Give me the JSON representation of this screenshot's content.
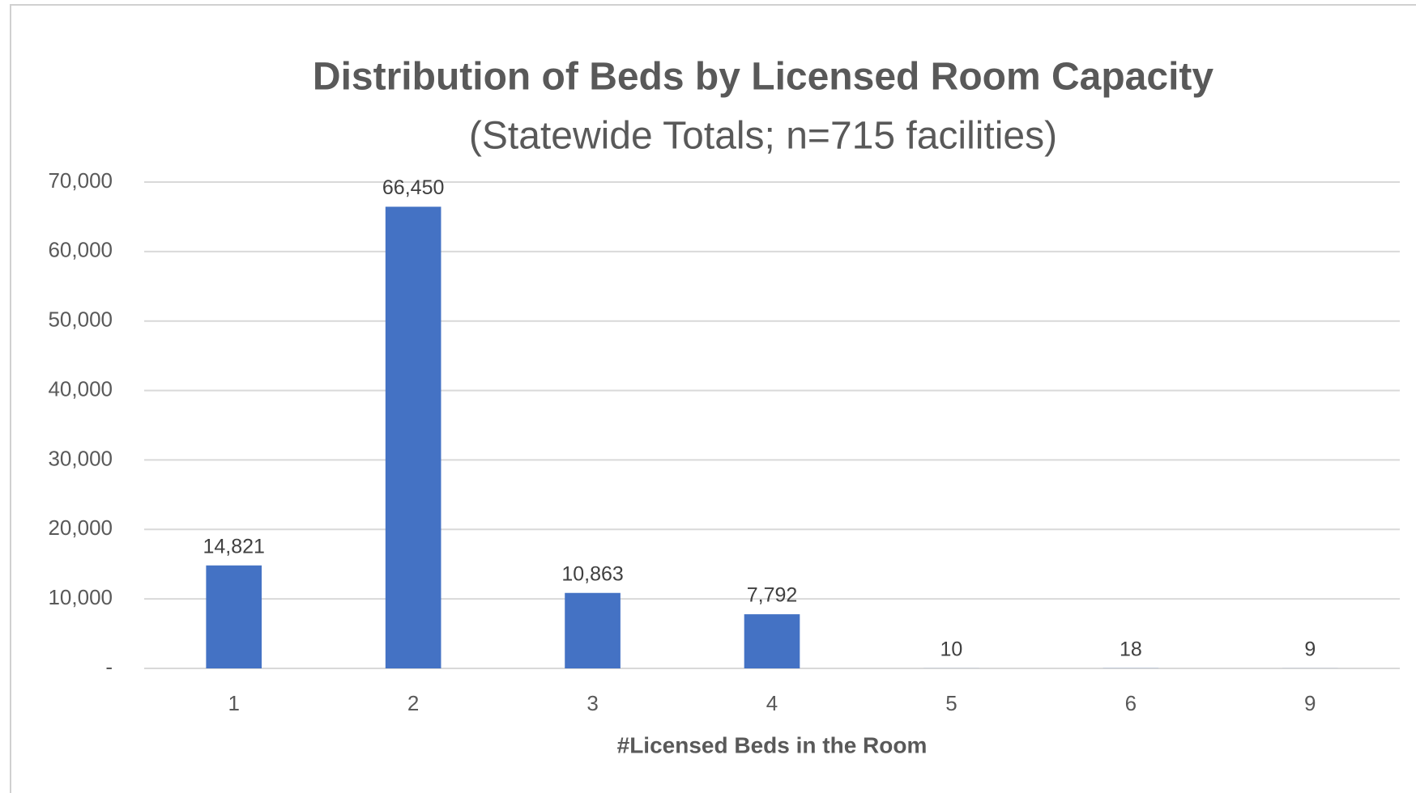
{
  "chart_data": {
    "type": "bar",
    "title": "Distribution of Beds by Licensed Room Capacity",
    "subtitle": "(Statewide Totals; n=715 facilities)",
    "x_label": "#Licensed Beds in the Room",
    "categories": [
      "1",
      "2",
      "3",
      "4",
      "5",
      "6",
      "9"
    ],
    "values": [
      14821,
      66450,
      10863,
      7792,
      10,
      18,
      9
    ],
    "value_labels": [
      "14,821",
      "66,450",
      "10,863",
      "7,792",
      "10",
      "18",
      "9"
    ],
    "color": "#4472c4",
    "ylim": [
      0,
      70000
    ],
    "yticks": [
      {
        "value": 0,
        "label": "-"
      },
      {
        "value": 10000,
        "label": "10,000"
      },
      {
        "value": 20000,
        "label": "20,000"
      },
      {
        "value": 30000,
        "label": "30,000"
      },
      {
        "value": 40000,
        "label": "40,000"
      },
      {
        "value": 50000,
        "label": "50,000"
      },
      {
        "value": 60000,
        "label": "60,000"
      },
      {
        "value": 70000,
        "label": "70,000"
      }
    ],
    "grid": true
  }
}
